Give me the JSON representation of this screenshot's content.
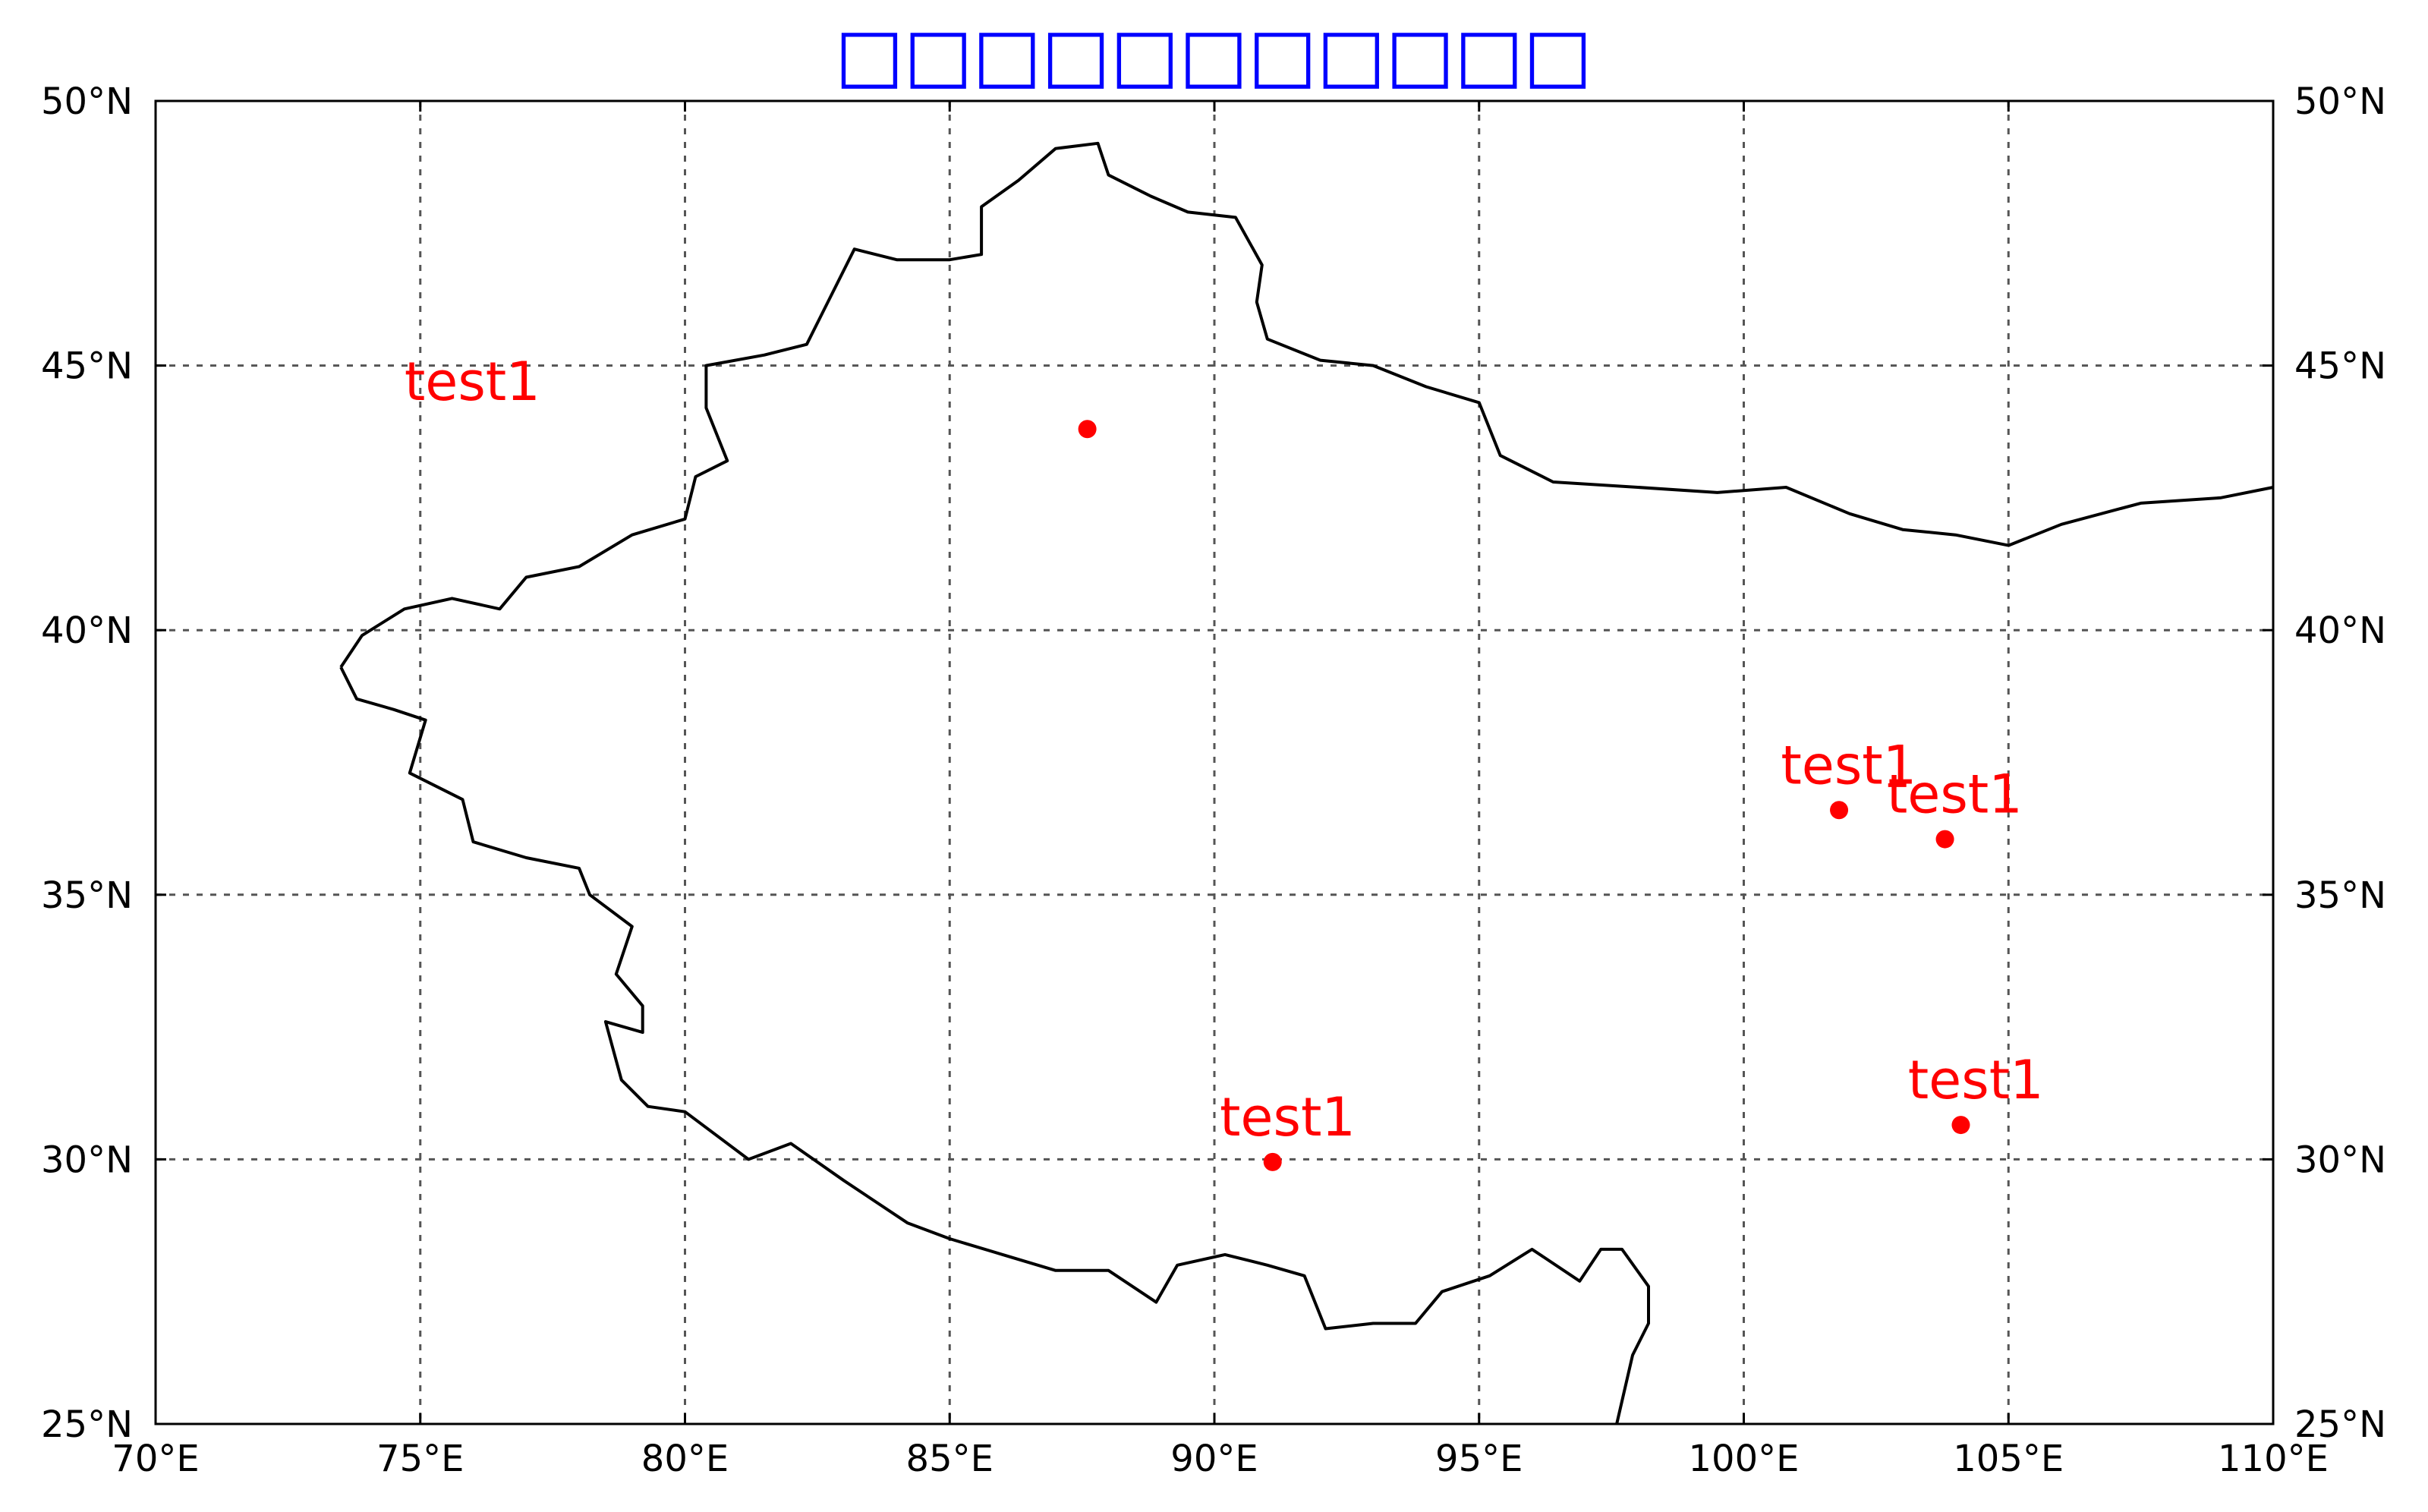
{
  "title": "□□□□□□□□□□□",
  "title_color": "#0000ff",
  "marker_color": "#ff0000",
  "line_color": "#000000",
  "grid_color": "#555555",
  "map": {
    "projection": "plate-carree",
    "lon_range": [
      70,
      110
    ],
    "lat_range": [
      25,
      50
    ],
    "grid": true,
    "lon_ticks": [
      70,
      75,
      80,
      85,
      90,
      95,
      100,
      105,
      110
    ],
    "lat_ticks": [
      25,
      30,
      35,
      40,
      45,
      50
    ],
    "lon_tick_labels": [
      "70°E",
      "75°E",
      "80°E",
      "85°E",
      "90°E",
      "95°E",
      "100°E",
      "105°E",
      "110°E"
    ],
    "lat_tick_labels": [
      "25°N",
      "30°N",
      "35°N",
      "40°N",
      "45°N",
      "50°N"
    ]
  },
  "points": [
    {
      "lon": 87.6,
      "lat": 43.8
    },
    {
      "lon": 101.8,
      "lat": 36.6
    },
    {
      "lon": 103.8,
      "lat": 36.05
    },
    {
      "lon": 91.1,
      "lat": 29.95
    },
    {
      "lon": 104.1,
      "lat": 30.65
    }
  ],
  "labels": [
    {
      "text": "test1",
      "lon": 74.7,
      "lat": 44.35
    },
    {
      "text": "test1",
      "lon": 100.7,
      "lat": 37.1
    },
    {
      "text": "test1",
      "lon": 102.7,
      "lat": 36.55
    },
    {
      "text": "test1",
      "lon": 90.1,
      "lat": 30.45
    },
    {
      "text": "test1",
      "lon": 103.1,
      "lat": 31.15
    }
  ],
  "border": [
    [
      73.5,
      39.3
    ],
    [
      73.9,
      39.9
    ],
    [
      74.7,
      40.4
    ],
    [
      75.6,
      40.6
    ],
    [
      76.5,
      40.4
    ],
    [
      77.0,
      41.0
    ],
    [
      78.0,
      41.2
    ],
    [
      79.0,
      41.8
    ],
    [
      80.0,
      42.1
    ],
    [
      80.2,
      42.9
    ],
    [
      80.8,
      43.2
    ],
    [
      80.4,
      44.2
    ],
    [
      80.4,
      45.0
    ],
    [
      81.5,
      45.2
    ],
    [
      82.3,
      45.4
    ],
    [
      82.6,
      46.0
    ],
    [
      83.2,
      47.2
    ],
    [
      84.0,
      47.0
    ],
    [
      85.0,
      47.0
    ],
    [
      85.6,
      47.1
    ],
    [
      85.6,
      48.0
    ],
    [
      86.3,
      48.5
    ],
    [
      87.0,
      49.1
    ],
    [
      87.8,
      49.2
    ],
    [
      88.0,
      48.6
    ],
    [
      88.8,
      48.2
    ],
    [
      89.5,
      47.9
    ],
    [
      90.4,
      47.8
    ],
    [
      90.9,
      46.9
    ],
    [
      90.8,
      46.2
    ],
    [
      91.0,
      45.5
    ],
    [
      92.0,
      45.1
    ],
    [
      93.0,
      45.0
    ],
    [
      94.0,
      44.6
    ],
    [
      95.0,
      44.3
    ],
    [
      95.4,
      43.3
    ],
    [
      96.4,
      42.8
    ],
    [
      98.0,
      42.7
    ],
    [
      99.5,
      42.6
    ],
    [
      100.8,
      42.7
    ],
    [
      102.0,
      42.2
    ],
    [
      103.0,
      41.9
    ],
    [
      104.0,
      41.8
    ],
    [
      105.0,
      41.6
    ],
    [
      106.0,
      42.0
    ],
    [
      107.5,
      42.4
    ],
    [
      109.0,
      42.5
    ],
    [
      110.0,
      42.7
    ]
  ],
  "border_south": [
    [
      73.5,
      39.3
    ],
    [
      73.8,
      38.7
    ],
    [
      74.5,
      38.5
    ],
    [
      75.1,
      38.3
    ],
    [
      74.8,
      37.3
    ],
    [
      75.8,
      36.8
    ],
    [
      76.0,
      36.0
    ],
    [
      77.0,
      35.7
    ],
    [
      78.0,
      35.5
    ],
    [
      78.2,
      35.0
    ],
    [
      79.0,
      34.4
    ],
    [
      78.7,
      33.5
    ],
    [
      79.2,
      32.9
    ],
    [
      79.2,
      32.4
    ],
    [
      78.5,
      32.6
    ],
    [
      78.8,
      31.5
    ],
    [
      79.3,
      31.0
    ],
    [
      80.0,
      30.9
    ],
    [
      81.2,
      30.0
    ],
    [
      82.0,
      30.3
    ],
    [
      83.0,
      29.6
    ],
    [
      84.2,
      28.8
    ],
    [
      85.0,
      28.5
    ],
    [
      86.0,
      28.2
    ],
    [
      87.0,
      27.9
    ],
    [
      88.0,
      27.9
    ],
    [
      88.9,
      27.3
    ],
    [
      89.3,
      28.0
    ],
    [
      90.2,
      28.2
    ],
    [
      91.0,
      28.0
    ],
    [
      91.7,
      27.8
    ],
    [
      92.1,
      26.8
    ],
    [
      93.0,
      26.9
    ],
    [
      93.8,
      26.9
    ],
    [
      94.3,
      27.5
    ],
    [
      95.2,
      27.8
    ],
    [
      96.0,
      28.3
    ],
    [
      96.9,
      27.7
    ],
    [
      97.3,
      28.3
    ],
    [
      97.7,
      28.3
    ],
    [
      98.2,
      27.6
    ],
    [
      98.2,
      26.9
    ],
    [
      97.9,
      26.3
    ],
    [
      97.6,
      25.0
    ]
  ]
}
